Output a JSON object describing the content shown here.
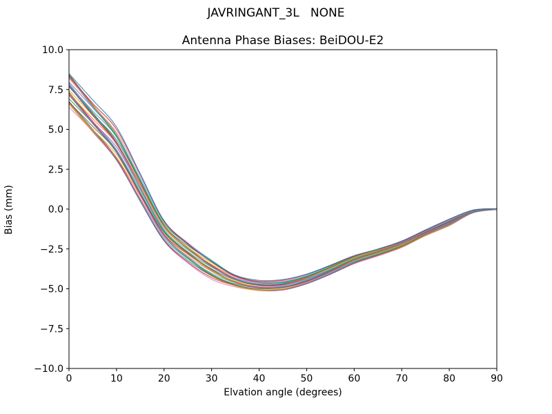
{
  "figure": {
    "suptitle": "JAVRINGANT_3L   NONE",
    "background": "#ffffff"
  },
  "chart_data": {
    "type": "line",
    "title": "JAVRINGANT_3L   NONE",
    "subtitle": "Antenna Phase Biases: BeiDOU-E2",
    "xlabel": "Elvation angle (degrees)",
    "ylabel": "Bias (mm)",
    "xlim": [
      0,
      90
    ],
    "ylim": [
      -10,
      10
    ],
    "grid": false,
    "legend": "none",
    "xticks": [
      0,
      10,
      20,
      30,
      40,
      50,
      60,
      70,
      80,
      90
    ],
    "xtick_labels": [
      "0",
      "10",
      "20",
      "30",
      "40",
      "50",
      "60",
      "70",
      "80",
      "90"
    ],
    "yticks": [
      -10,
      -7.5,
      -5,
      -2.5,
      0,
      2.5,
      5,
      7.5,
      10
    ],
    "ytick_labels": [
      "−10.0",
      "−7.5",
      "−5.0",
      "−2.5",
      "0.0",
      "2.5",
      "5.0",
      "7.5",
      "10.0"
    ],
    "x": [
      0,
      5,
      10,
      15,
      20,
      25,
      30,
      35,
      40,
      45,
      50,
      55,
      60,
      65,
      70,
      75,
      80,
      85,
      90
    ],
    "band_center": [
      7.5,
      5.75,
      4.0,
      1.3,
      -1.35,
      -2.7,
      -3.75,
      -4.5,
      -4.82,
      -4.78,
      -4.4,
      -3.8,
      -3.15,
      -2.7,
      -2.2,
      -1.5,
      -0.85,
      -0.15,
      0.0
    ],
    "band_halfwidth": [
      1.2,
      1.1,
      1.05,
      0.85,
      0.62,
      0.62,
      0.62,
      0.42,
      0.35,
      0.33,
      0.3,
      0.28,
      0.25,
      0.23,
      0.23,
      0.2,
      0.2,
      0.08,
      0.02
    ],
    "envelope_top": [
      8.7,
      6.85,
      5.05,
      2.15,
      -0.73,
      -2.08,
      -3.13,
      -4.08,
      -4.47,
      -4.45,
      -4.1,
      -3.52,
      -2.9,
      -2.47,
      -1.97,
      -1.3,
      -0.65,
      -0.07,
      0.02
    ],
    "envelope_bottom": [
      6.3,
      4.65,
      2.95,
      0.45,
      -1.97,
      -3.32,
      -4.37,
      -4.92,
      -5.17,
      -5.11,
      -4.7,
      -4.08,
      -3.4,
      -2.93,
      -2.43,
      -1.7,
      -1.05,
      -0.23,
      -0.02
    ],
    "n_lines": 33,
    "line_width": 1.2,
    "line_alpha": 0.8,
    "line_colors": [
      "#1f77b4",
      "#ff7f0e",
      "#2ca02c",
      "#d62728",
      "#9467bd",
      "#8c564b",
      "#e377c2",
      "#7f7f7f",
      "#bcbd22",
      "#17becf"
    ],
    "axis_color": "#000000"
  }
}
